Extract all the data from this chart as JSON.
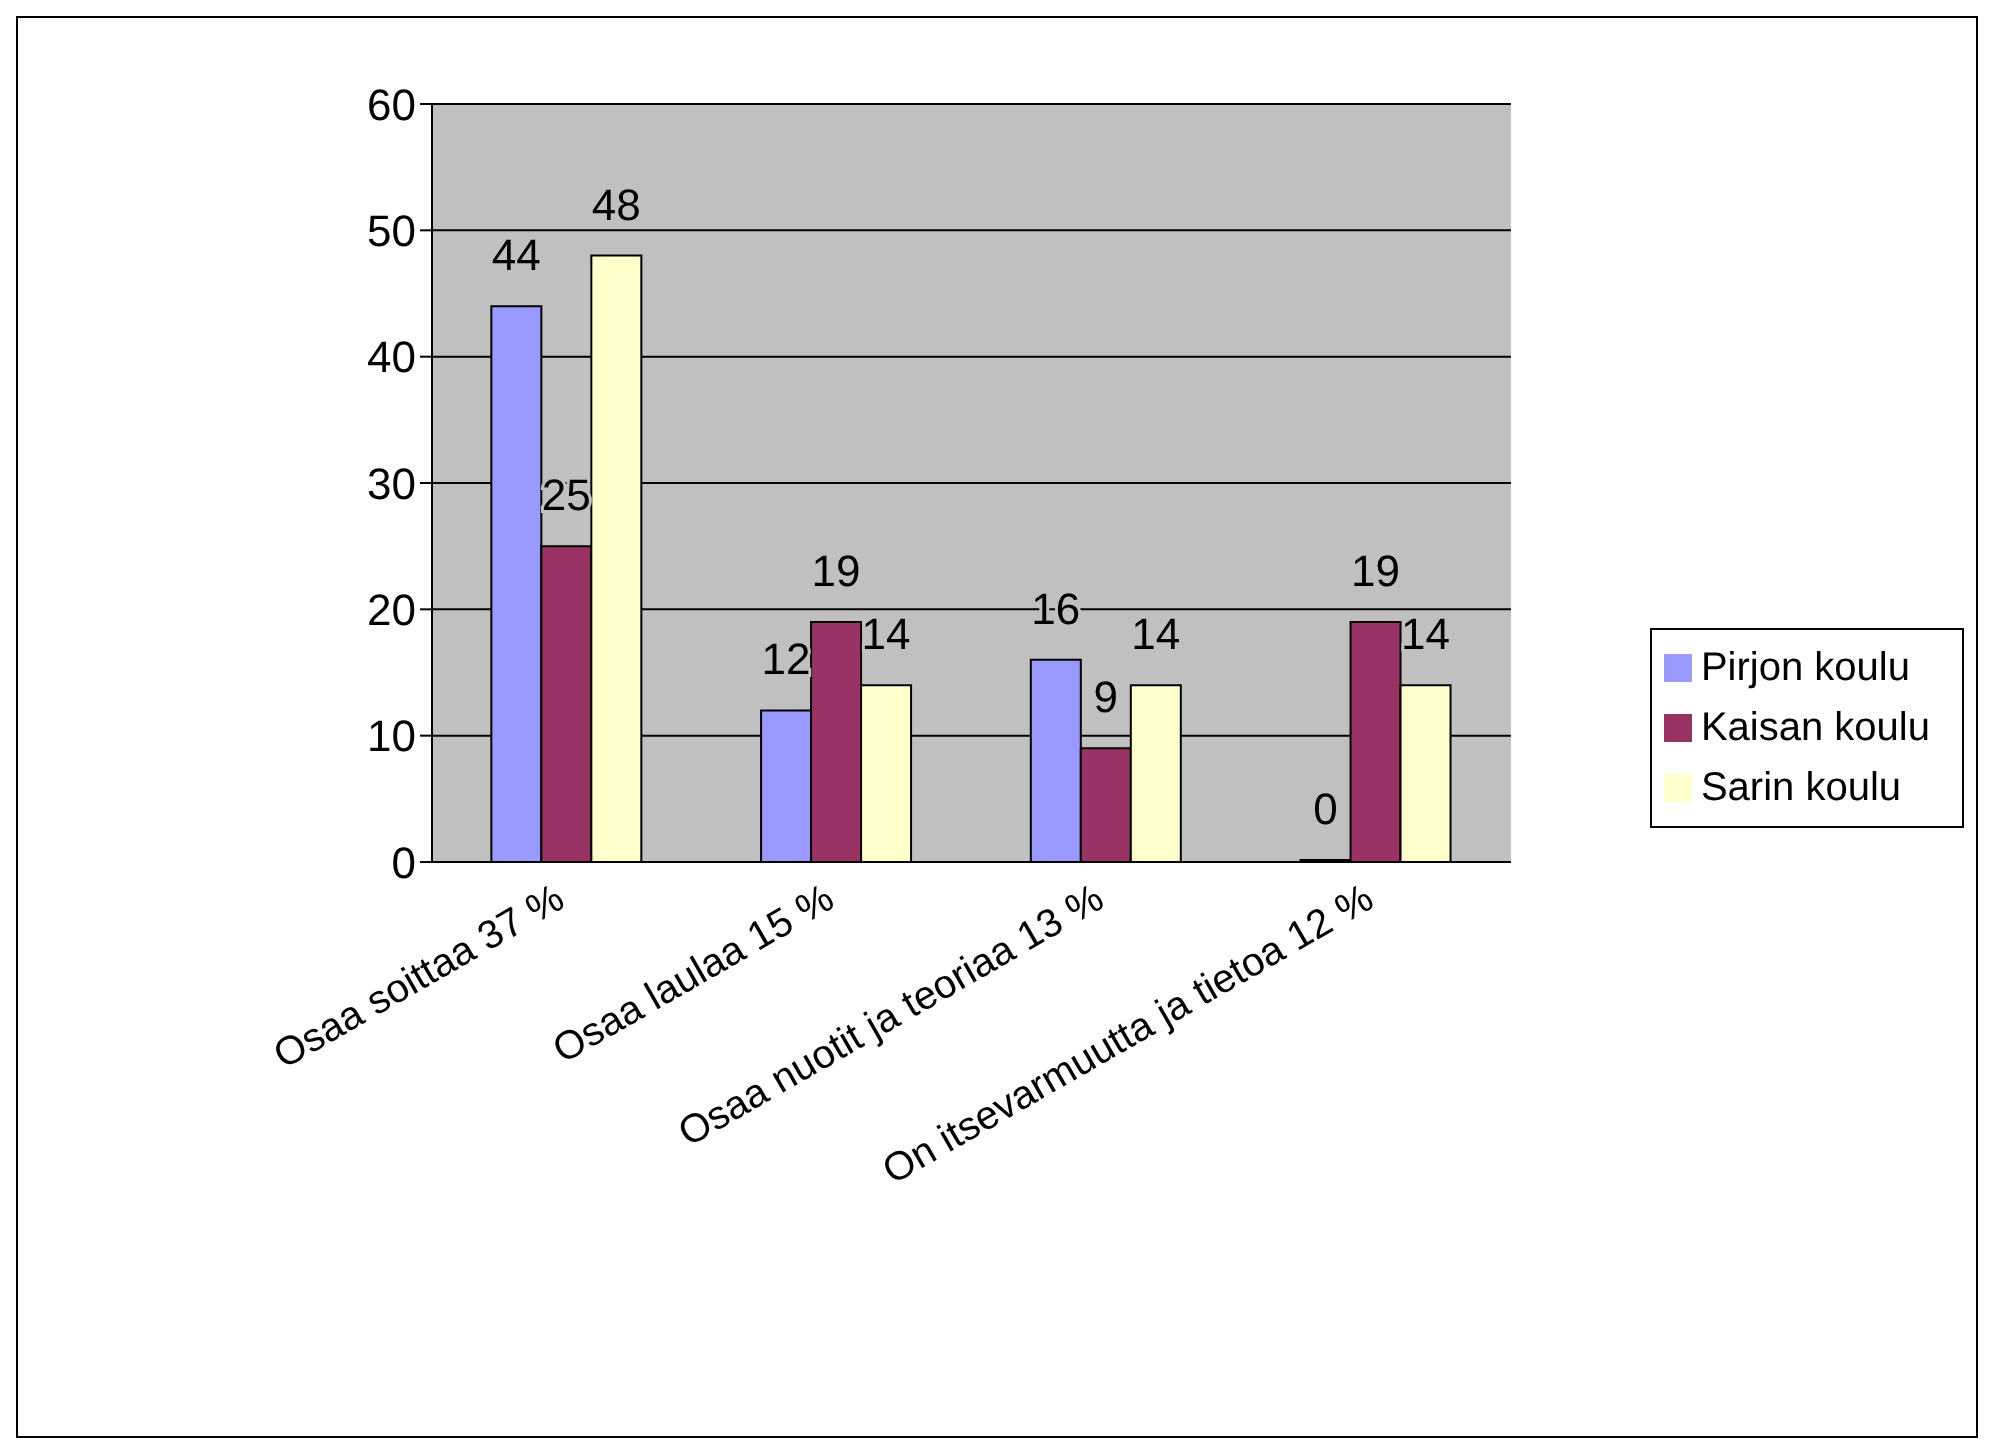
{
  "chart_data": {
    "type": "bar",
    "categories": [
      "Osaa soittaa 37 %",
      "Osaa laulaa 15 %",
      "Osaa nuotit ja teoriaa 13 %",
      "On itsevarmuutta ja tietoa 12 %"
    ],
    "series": [
      {
        "name": "Pirjon koulu",
        "color": "#9999ff",
        "values": [
          44,
          12,
          16,
          0
        ]
      },
      {
        "name": "Kaisan koulu",
        "color": "#993366",
        "values": [
          25,
          19,
          9,
          19
        ]
      },
      {
        "name": "Sarin koulu",
        "color": "#ffffcc",
        "values": [
          48,
          14,
          14,
          14
        ]
      }
    ],
    "ylim": [
      0,
      60
    ],
    "yticks": [
      0,
      10,
      20,
      30,
      40,
      50,
      60
    ],
    "grid": "y",
    "legend": "right",
    "data_labels": true
  }
}
